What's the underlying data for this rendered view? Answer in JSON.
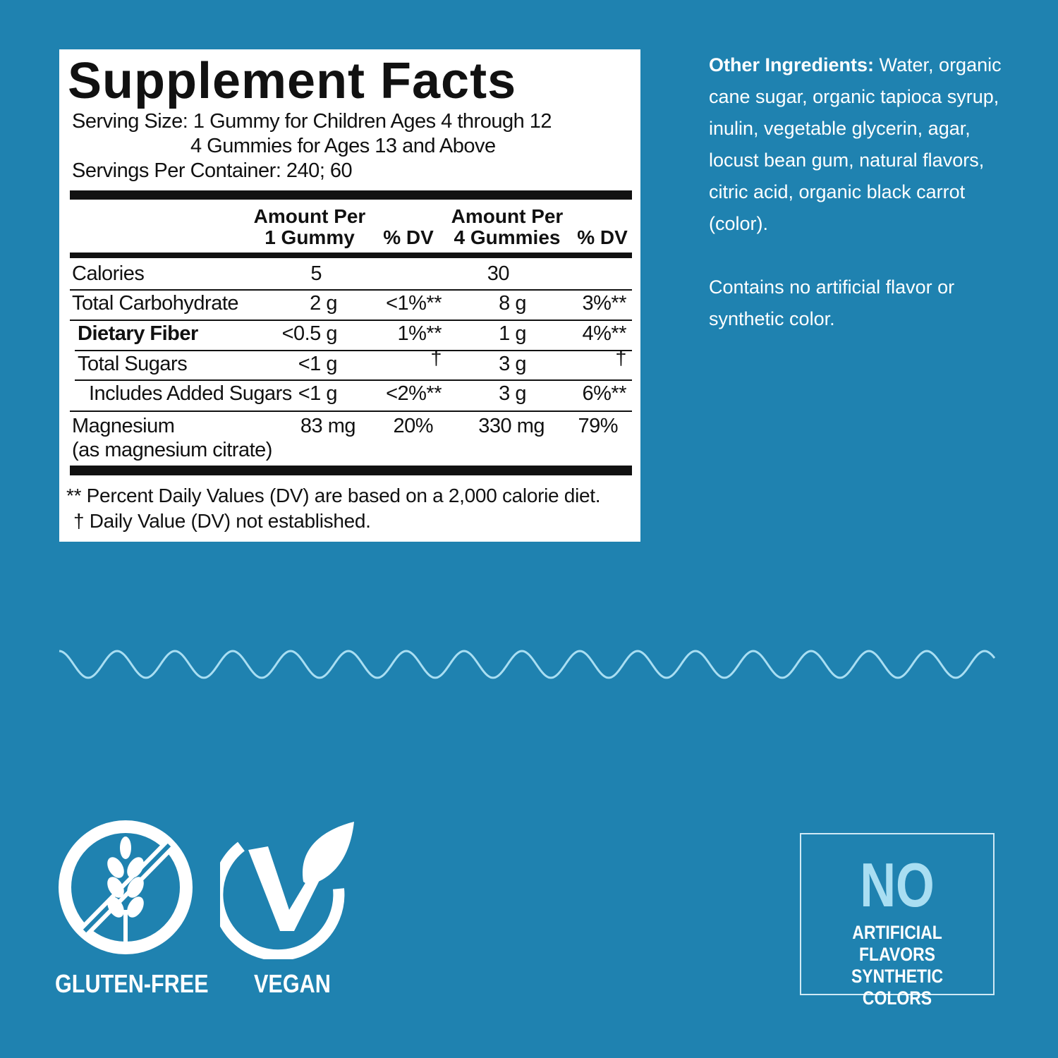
{
  "label": {
    "title": "Supplement Facts",
    "serving_size": "Serving Size: 1 Gummy for Children Ages 4 through 12",
    "serving_size_2": "4 Gummies for Ages 13 and Above",
    "servings_per_container": "Servings Per Container: 240; 60",
    "headers": {
      "amount1": "Amount Per",
      "amount1b": "1 Gummy",
      "dv1": "% DV",
      "amount4": "Amount Per",
      "amount4b": "4 Gummies",
      "dv4": "% DV"
    },
    "rows": [
      {
        "name": "Calories",
        "a1": "5",
        "d1": "",
        "a4": "30",
        "d4": ""
      },
      {
        "name": "Total Carbohydrate",
        "a1": "2 g",
        "d1": "<1%**",
        "a4": "8 g",
        "d4": "3%**"
      },
      {
        "name": "Dietary Fiber",
        "a1": "<0.5 g",
        "d1": "1%**",
        "a4": "1 g",
        "d4": "4%**"
      },
      {
        "name": "Total Sugars",
        "a1": "<1 g",
        "d1": "†",
        "a4": "3 g",
        "d4": "†"
      },
      {
        "name": "Includes Added Sugars",
        "a1": "<1 g",
        "d1": "<2%**",
        "a4": "3 g",
        "d4": "6%**"
      },
      {
        "name": "Magnesium",
        "sub": "(as magnesium citrate)",
        "a1": "83 mg",
        "d1": "20%",
        "a4": "330 mg",
        "d4": "79%"
      }
    ],
    "footnote1": "** Percent Daily Values (DV) are based on a 2,000 calorie diet.",
    "footnote2": "† Daily Value (DV) not established."
  },
  "side": {
    "other_label": "Other Ingredients:",
    "other_text": " Water, organic cane sugar, organic tapioca syrup, inulin, vegetable glycerin, agar, locust bean gum, natural flavors, citric acid, organic black carrot (color).",
    "contains": "Contains no artificial flavor or synthetic color."
  },
  "badges": {
    "gluten_free": "GLUTEN-FREE",
    "vegan": "VEGAN",
    "no": "NO",
    "no_line1": "ARTIFICIAL FLAVORS",
    "no_line2": "SYNTHETIC COLORS"
  },
  "colors": {
    "background": "#1f82b0",
    "wave": "#a9def2",
    "label": "#ffffff"
  }
}
